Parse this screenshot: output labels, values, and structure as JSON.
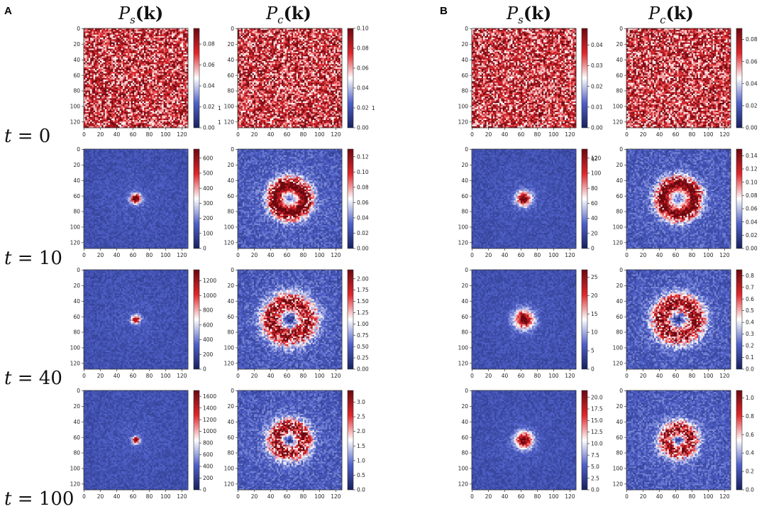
{
  "panels": [
    {
      "label": "A"
    },
    {
      "label": "B"
    }
  ],
  "column_headers": [
    {
      "base": "P",
      "sub": "s",
      "arg": "(k)"
    },
    {
      "base": "P",
      "sub": "c",
      "arg": "(k)"
    },
    {
      "base": "P",
      "sub": "s",
      "arg": "(k)"
    },
    {
      "base": "P",
      "sub": "c",
      "arg": "(k)"
    }
  ],
  "row_labels": [
    {
      "var": "t",
      "eq": " = ",
      "value": "0"
    },
    {
      "var": "t",
      "eq": " = ",
      "value": "10"
    },
    {
      "var": "t",
      "eq": " = ",
      "value": "40"
    },
    {
      "var": "t",
      "eq": " = ",
      "value": "100"
    }
  ],
  "axis_ticks": {
    "x": [
      "0",
      "20",
      "40",
      "60",
      "80",
      "100",
      "120"
    ],
    "y": [
      "0",
      "20",
      "40",
      "60",
      "80",
      "100",
      "120"
    ]
  },
  "colorscale": {
    "low": "#16205e",
    "midlow": "#4f60c8",
    "mid": "#ffffff",
    "midhigh": "#e0262b",
    "high": "#6b0810"
  },
  "chart_data": [
    {
      "type": "heatmap",
      "panel": "A",
      "column": "Ps(k)",
      "time": "t = 0",
      "pattern": "noise",
      "xlim": [
        0,
        128
      ],
      "ylim": [
        0,
        128
      ],
      "colorbar_ticks": [
        "0.00",
        "0.02",
        "0.04",
        "0.06",
        "0.08"
      ],
      "colorbar_range": [
        0,
        0.095
      ],
      "extra_labels": [
        "1",
        "1"
      ]
    },
    {
      "type": "heatmap",
      "panel": "A",
      "column": "Pc(k)",
      "time": "t = 0",
      "pattern": "noise",
      "xlim": [
        0,
        128
      ],
      "ylim": [
        0,
        128
      ],
      "colorbar_ticks": [
        "0.00",
        "0.02",
        "0.04",
        "0.06",
        "0.08",
        "0.10"
      ],
      "colorbar_range": [
        0,
        0.1
      ],
      "extra_labels": [
        "1"
      ]
    },
    {
      "type": "heatmap",
      "panel": "B",
      "column": "Ps(k)",
      "time": "t = 0",
      "pattern": "noise",
      "xlim": [
        0,
        128
      ],
      "ylim": [
        0,
        128
      ],
      "colorbar_ticks": [
        "0.00",
        "0.01",
        "0.02",
        "0.03",
        "0.04"
      ],
      "colorbar_range": [
        0,
        0.048
      ]
    },
    {
      "type": "heatmap",
      "panel": "B",
      "column": "Pc(k)",
      "time": "t = 0",
      "pattern": "noise",
      "xlim": [
        0,
        128
      ],
      "ylim": [
        0,
        128
      ],
      "colorbar_ticks": [
        "0.00",
        "0.02",
        "0.04",
        "0.06",
        "0.08"
      ],
      "colorbar_range": [
        0,
        0.09
      ]
    },
    {
      "type": "heatmap",
      "panel": "A",
      "column": "Ps(k)",
      "time": "t = 10",
      "pattern": "blob",
      "blob_radius": 5,
      "xlim": [
        0,
        128
      ],
      "ylim": [
        0,
        128
      ],
      "colorbar_ticks": [
        "0",
        "100",
        "200",
        "300",
        "400",
        "500",
        "600"
      ],
      "colorbar_range": [
        0,
        660
      ]
    },
    {
      "type": "heatmap",
      "panel": "A",
      "column": "Pc(k)",
      "time": "t = 10",
      "pattern": "ring",
      "ring_radius": 21,
      "ring_width": 9,
      "center_level": 0.65,
      "xlim": [
        0,
        128
      ],
      "ylim": [
        0,
        128
      ],
      "colorbar_ticks": [
        "0.00",
        "0.02",
        "0.04",
        "0.06",
        "0.08",
        "0.10",
        "0.12"
      ],
      "colorbar_range": [
        0,
        0.13
      ]
    },
    {
      "type": "heatmap",
      "panel": "B",
      "column": "Ps(k)",
      "time": "t = 10",
      "pattern": "blob",
      "blob_radius": 7,
      "xlim": [
        0,
        128
      ],
      "ylim": [
        0,
        128
      ],
      "colorbar_ticks": [
        "0",
        "20",
        "40",
        "60",
        "80",
        "100",
        "120"
      ],
      "colorbar_range": [
        0,
        132
      ],
      "truncated_top_label": "q2"
    },
    {
      "type": "heatmap",
      "panel": "B",
      "column": "Pc(k)",
      "time": "t = 10",
      "pattern": "ring",
      "ring_radius": 22,
      "ring_width": 9,
      "center_level": 0.55,
      "xlim": [
        0,
        128
      ],
      "ylim": [
        0,
        128
      ],
      "colorbar_ticks": [
        "0.00",
        "0.02",
        "0.04",
        "0.06",
        "0.08",
        "0.10",
        "0.12",
        "0.14"
      ],
      "colorbar_range": [
        0,
        0.15
      ]
    },
    {
      "type": "heatmap",
      "panel": "A",
      "column": "Ps(k)",
      "time": "t = 40",
      "pattern": "blob",
      "blob_radius": 4,
      "xlim": [
        0,
        128
      ],
      "ylim": [
        0,
        128
      ],
      "colorbar_ticks": [
        "0",
        "200",
        "400",
        "600",
        "800",
        "1000",
        "1200"
      ],
      "colorbar_range": [
        0,
        1350
      ]
    },
    {
      "type": "heatmap",
      "panel": "A",
      "column": "Pc(k)",
      "time": "t = 40",
      "pattern": "ring",
      "ring_radius": 22,
      "ring_width": 13,
      "center_level": 0.0,
      "xlim": [
        0,
        128
      ],
      "ylim": [
        0,
        128
      ],
      "colorbar_ticks": [
        "0.00",
        "0.25",
        "0.50",
        "0.75",
        "1.00",
        "1.25",
        "1.50",
        "1.75",
        "2.00"
      ],
      "colorbar_range": [
        0,
        2.2
      ]
    },
    {
      "type": "heatmap",
      "panel": "B",
      "column": "Ps(k)",
      "time": "t = 40",
      "pattern": "blob",
      "blob_radius": 9,
      "xlim": [
        0,
        128
      ],
      "ylim": [
        0,
        128
      ],
      "colorbar_ticks": [
        "0",
        "5",
        "10",
        "15",
        "20",
        "25"
      ],
      "colorbar_range": [
        0,
        27
      ]
    },
    {
      "type": "heatmap",
      "panel": "B",
      "column": "Pc(k)",
      "time": "t = 40",
      "pattern": "ring",
      "ring_radius": 21,
      "ring_width": 13,
      "center_level": 0.0,
      "xlim": [
        0,
        128
      ],
      "ylim": [
        0,
        128
      ],
      "colorbar_ticks": [
        "0.0",
        "0.1",
        "0.2",
        "0.3",
        "0.4",
        "0.5",
        "0.6",
        "0.7",
        "0.8"
      ],
      "colorbar_range": [
        0,
        0.85
      ]
    },
    {
      "type": "heatmap",
      "panel": "A",
      "column": "Ps(k)",
      "time": "t = 100",
      "pattern": "blob",
      "blob_radius": 3.5,
      "xlim": [
        0,
        128
      ],
      "ylim": [
        0,
        128
      ],
      "colorbar_ticks": [
        "0",
        "200",
        "400",
        "600",
        "800",
        "1000",
        "1200",
        "1400",
        "1600"
      ],
      "colorbar_range": [
        0,
        1700
      ]
    },
    {
      "type": "heatmap",
      "panel": "A",
      "column": "Pc(k)",
      "time": "t = 100",
      "pattern": "ring",
      "ring_radius": 17,
      "ring_width": 11,
      "center_level": 0.0,
      "xlim": [
        0,
        128
      ],
      "ylim": [
        0,
        128
      ],
      "colorbar_ticks": [
        "0.0",
        "0.5",
        "1.0",
        "1.5",
        "2.0",
        "2.5",
        "3.0"
      ],
      "colorbar_range": [
        0,
        3.4
      ]
    },
    {
      "type": "heatmap",
      "panel": "B",
      "column": "Ps(k)",
      "time": "t = 100",
      "pattern": "blob",
      "blob_radius": 8,
      "xlim": [
        0,
        128
      ],
      "ylim": [
        0,
        128
      ],
      "colorbar_ticks": [
        "0.0",
        "2.5",
        "5.0",
        "7.5",
        "10.0",
        "12.5",
        "15.0",
        "17.5",
        "20.0"
      ],
      "colorbar_range": [
        0,
        21.5
      ]
    },
    {
      "type": "heatmap",
      "panel": "B",
      "column": "Pc(k)",
      "time": "t = 100",
      "pattern": "ring",
      "ring_radius": 15,
      "ring_width": 10,
      "center_level": 0.0,
      "xlim": [
        0,
        128
      ],
      "ylim": [
        0,
        128
      ],
      "colorbar_ticks": [
        "0.0",
        "0.2",
        "0.4",
        "0.6",
        "0.8",
        "1.0"
      ],
      "colorbar_range": [
        0,
        1.08
      ]
    }
  ]
}
